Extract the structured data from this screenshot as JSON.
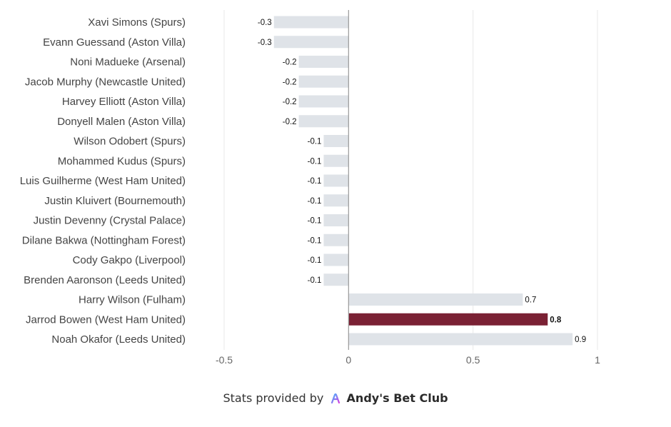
{
  "chart_data": {
    "type": "bar",
    "orientation": "horizontal",
    "categories": [
      "Xavi Simons (Spurs)",
      "Evann Guessand (Aston Villa)",
      "Noni Madueke (Arsenal)",
      "Jacob Murphy (Newcastle United)",
      "Harvey Elliott (Aston Villa)",
      "Donyell Malen (Aston Villa)",
      "Wilson Odobert (Spurs)",
      "Mohammed Kudus (Spurs)",
      "Luis Guilherme (West Ham United)",
      "Justin Kluivert (Bournemouth)",
      "Justin Devenny (Crystal Palace)",
      "Dilane Bakwa (Nottingham Forest)",
      "Cody Gakpo (Liverpool)",
      "Brenden Aaronson (Leeds United)",
      "Harry Wilson (Fulham)",
      "Jarrod Bowen (West Ham United)",
      "Noah Okafor (Leeds United)"
    ],
    "values": [
      -0.3,
      -0.3,
      -0.2,
      -0.2,
      -0.2,
      -0.2,
      -0.1,
      -0.1,
      -0.1,
      -0.1,
      -0.1,
      -0.1,
      -0.1,
      -0.1,
      0.7,
      0.8,
      0.9
    ],
    "value_labels": [
      "-0.3",
      "-0.3",
      "-0.2",
      "-0.2",
      "-0.2",
      "-0.2",
      "-0.1",
      "-0.1",
      "-0.1",
      "-0.1",
      "-0.1",
      "-0.1",
      "-0.1",
      "-0.1",
      "0.7",
      "0.8",
      "0.9"
    ],
    "highlight_index": 15,
    "xlim": [
      -0.5,
      1
    ],
    "xticks": [
      -0.5,
      0,
      0.5,
      1
    ],
    "xtick_labels": [
      "-0.5",
      "0",
      "0.5",
      "1"
    ],
    "grid": "vertical",
    "colors": {
      "bar": "#dfe3e8",
      "highlight": "#7a2134",
      "grid": "#e8e8e8",
      "zero_line": "#999999"
    }
  },
  "footer": {
    "prefix": "Stats provided by",
    "brand": "Andy's Bet Club"
  }
}
